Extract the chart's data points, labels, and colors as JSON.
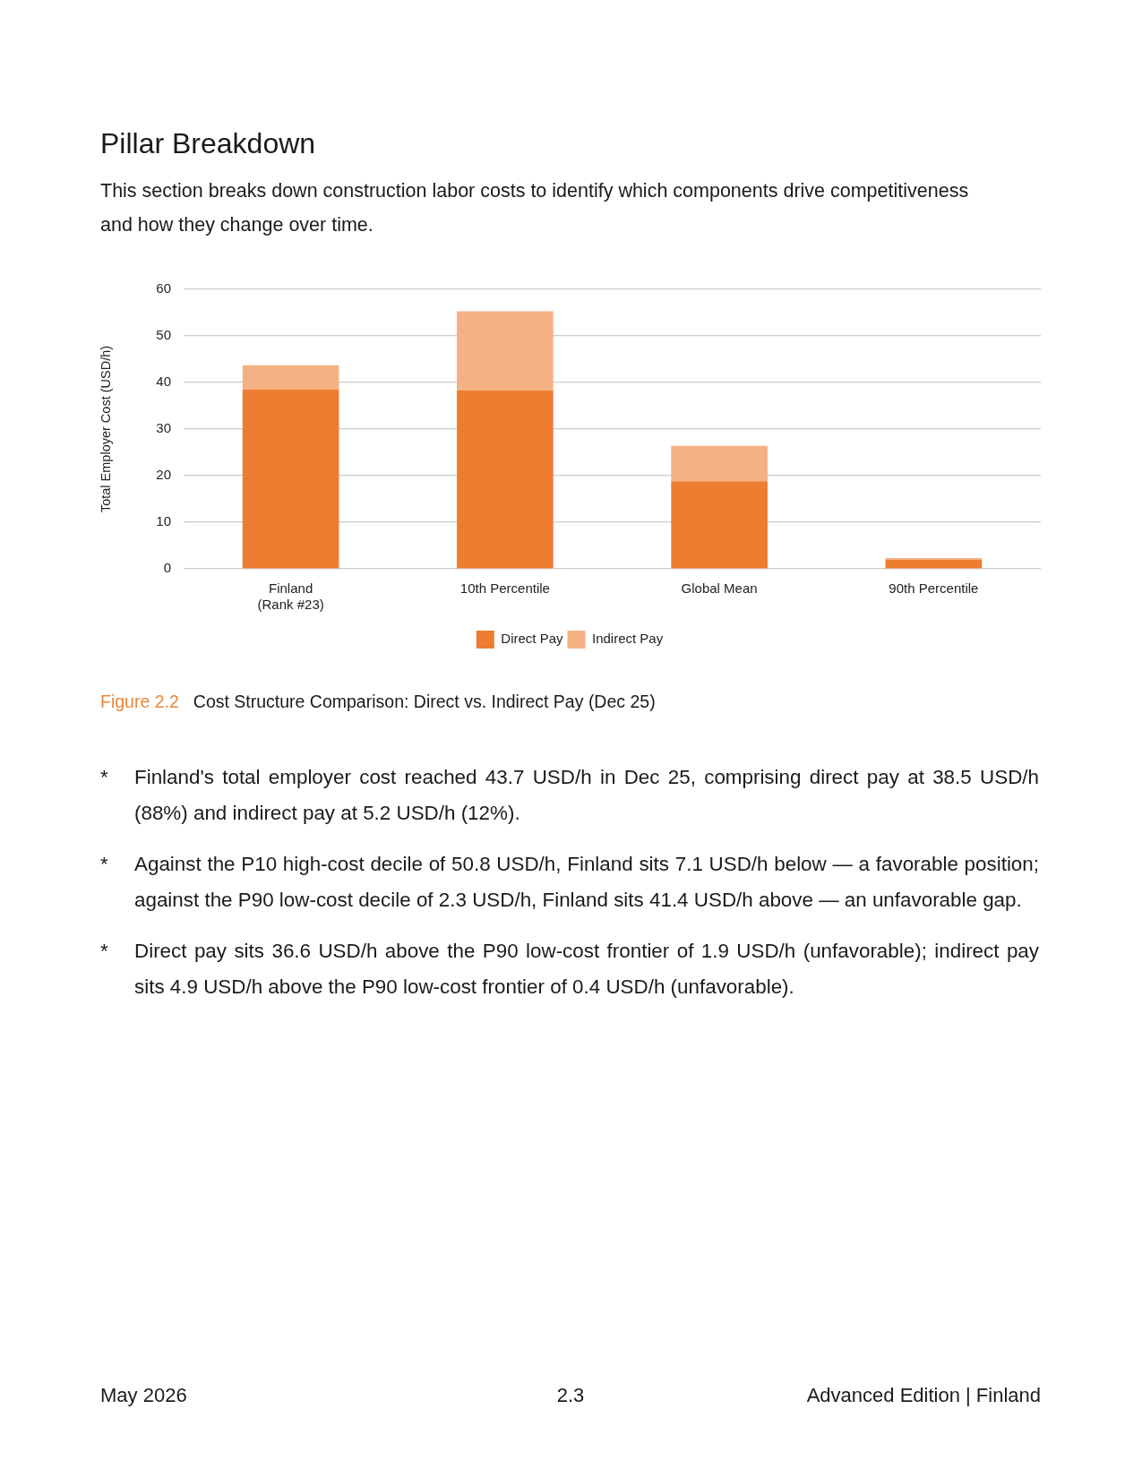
{
  "chart_data": {
    "type": "bar",
    "title": "Pillar Breakdown",
    "subtitle": "This section breaks down construction labor costs to identify which components drive competitiveness and how they change over time.",
    "ylabel": "Total Employer Cost (USD/h)",
    "categories": [
      "Finland\n(Rank #23)",
      "10th Percentile",
      "Global Mean",
      "90th Percentile"
    ],
    "series": [
      {
        "name": "Direct Pay",
        "color": "#ed7d31",
        "values": [
          38.5,
          38.3,
          18.8,
          1.9
        ]
      },
      {
        "name": "Indirect Pay",
        "color": "#f4b183",
        "values": [
          5.2,
          17.0,
          7.6,
          0.4
        ]
      }
    ],
    "stacked": true,
    "ylim": [
      0,
      60
    ],
    "yticks": [
      0,
      10,
      20,
      30,
      40,
      50,
      60
    ],
    "grid": "y",
    "legend": "bottom",
    "annotations": [
      "Figure 2.2",
      "Cost Structure Comparison: Direct vs. Indirect Pay (Dec 25)",
      "* Finland's total employer cost reached 43.7 USD/h in Dec 25, comprising direct pay at 38.5 USD/h (88%) and indirect pay at 5.2 USD/h (12%).",
      "* Against the P10 high-cost decile of 50.8 USD/h, Finland sits 7.1 USD/h below — a favorable position; against the P90 low-cost decile of 2.3 USD/h, Finland sits 41.4 USD/h above — an unfavorable gap.",
      "* Direct pay sits 36.6 USD/h above the P90 low-cost frontier of 1.9 USD/h (unfavorable); indirect pay sits 4.9 USD/h above the P90 low-cost frontier of 0.4 USD/h (unfavorable).",
      "May 2026",
      "2.3",
      "Advanced Edition | Finland"
    ]
  }
}
